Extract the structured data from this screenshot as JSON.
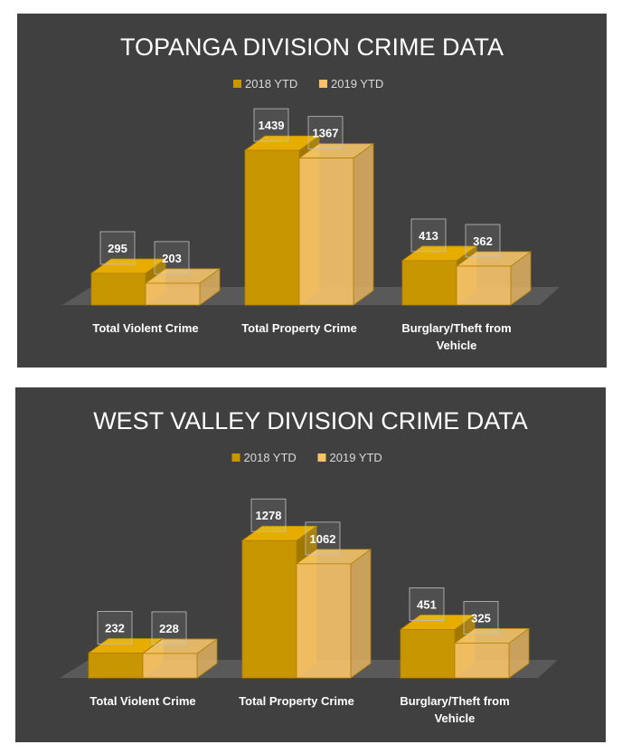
{
  "chart_data": [
    {
      "type": "bar",
      "title": "TOPANGA DIVISION CRIME DATA",
      "categories": [
        "Total Violent Crime",
        "Total Property Crime",
        "Burglary/Theft from Vehicle"
      ],
      "series": [
        {
          "name": "2018 YTD",
          "values": [
            295,
            1439,
            413
          ],
          "color": "#c89600"
        },
        {
          "name": "2019 YTD",
          "values": [
            203,
            1367,
            362
          ],
          "color": "#f7c36a"
        }
      ],
      "legend": "top",
      "grid": false,
      "ylim": [
        0,
        1600
      ]
    },
    {
      "type": "bar",
      "title": "WEST VALLEY DIVISION CRIME DATA",
      "categories": [
        "Total Violent Crime",
        "Total Property Crime",
        "Burglary/Theft from Vehicle"
      ],
      "series": [
        {
          "name": "2018 YTD",
          "values": [
            232,
            1278,
            451
          ],
          "color": "#c89600"
        },
        {
          "name": "2019 YTD",
          "values": [
            228,
            1062,
            325
          ],
          "color": "#f7c36a"
        }
      ],
      "legend": "top",
      "grid": false,
      "ylim": [
        0,
        1600
      ]
    }
  ]
}
